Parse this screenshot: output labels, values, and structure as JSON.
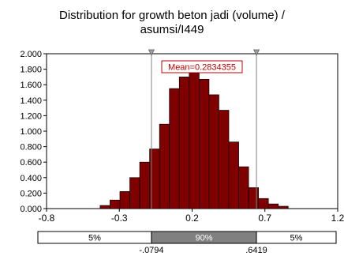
{
  "chart_data": {
    "type": "bar",
    "title_line1": "Distribution for growth beton jadi (volume) /",
    "title_line2": "asumsi/I449",
    "x_range": [
      -0.8,
      1.2
    ],
    "y_range": [
      0,
      2.0
    ],
    "x_ticks": [
      {
        "value": -0.8,
        "label": "-0.8"
      },
      {
        "value": -0.3,
        "label": "-0.3"
      },
      {
        "value": 0.2,
        "label": "0.2"
      },
      {
        "value": 0.7,
        "label": "0.7"
      },
      {
        "value": 1.2,
        "label": "1.2"
      }
    ],
    "y_ticks": [
      {
        "value": 0.0,
        "label": "0.000"
      },
      {
        "value": 0.2,
        "label": "0.200"
      },
      {
        "value": 0.4,
        "label": "0.400"
      },
      {
        "value": 0.6,
        "label": "0.600"
      },
      {
        "value": 0.8,
        "label": "0.800"
      },
      {
        "value": 1.0,
        "label": "1.000"
      },
      {
        "value": 1.2,
        "label": "1.200"
      },
      {
        "value": 1.4,
        "label": "1.400"
      },
      {
        "value": 1.6,
        "label": "1.600"
      },
      {
        "value": 1.8,
        "label": "1.800"
      },
      {
        "value": 2.0,
        "label": "2.000"
      }
    ],
    "bin_width": 0.068,
    "bins": [
      {
        "x": -0.432,
        "y": 0.04
      },
      {
        "x": -0.364,
        "y": 0.11
      },
      {
        "x": -0.296,
        "y": 0.22
      },
      {
        "x": -0.228,
        "y": 0.4
      },
      {
        "x": -0.16,
        "y": 0.6
      },
      {
        "x": -0.092,
        "y": 0.77
      },
      {
        "x": -0.024,
        "y": 1.09
      },
      {
        "x": 0.044,
        "y": 1.55
      },
      {
        "x": 0.112,
        "y": 1.7
      },
      {
        "x": 0.18,
        "y": 1.75
      },
      {
        "x": 0.248,
        "y": 1.67
      },
      {
        "x": 0.316,
        "y": 1.47
      },
      {
        "x": 0.384,
        "y": 1.27
      },
      {
        "x": 0.452,
        "y": 0.86
      },
      {
        "x": 0.52,
        "y": 0.54
      },
      {
        "x": 0.588,
        "y": 0.27
      },
      {
        "x": 0.656,
        "y": 0.13
      },
      {
        "x": 0.724,
        "y": 0.06
      },
      {
        "x": 0.792,
        "y": 0.03
      }
    ],
    "lower_marker": -0.0794,
    "upper_marker": 0.6419,
    "mean_label": "Mean=0.2834355",
    "bar_color": "#800000",
    "percent_bar": {
      "left_label": "5%",
      "middle_label": "90%",
      "right_label": "5%",
      "lower_label": "-.0794",
      "upper_label": ".6419"
    }
  }
}
